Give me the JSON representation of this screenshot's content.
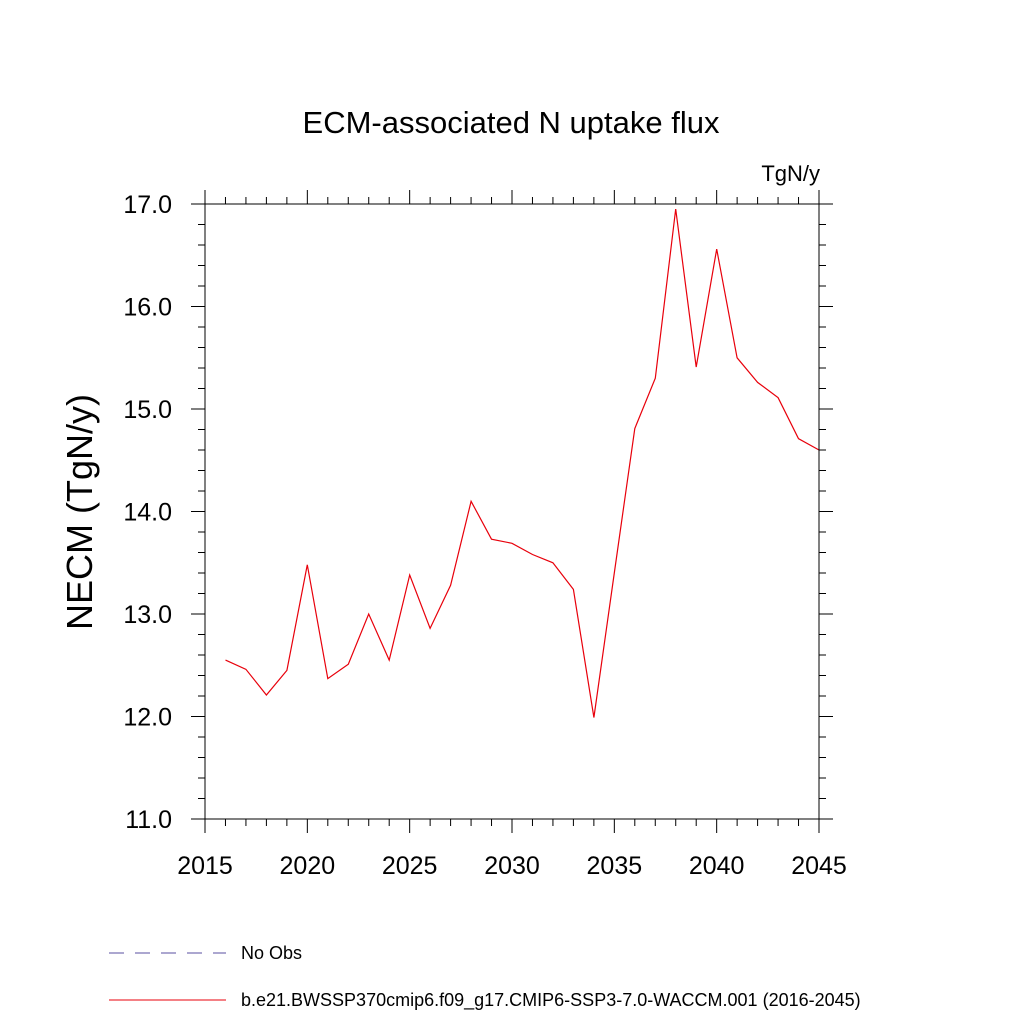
{
  "chart_data": {
    "type": "line",
    "title": "ECM-associated N uptake flux",
    "units": "TgN/y",
    "ylabel": "NECM  (TgN/y)",
    "xlabel": "",
    "xlim": [
      2015,
      2045
    ],
    "ylim": [
      11.0,
      17.0
    ],
    "x_ticks": [
      "2015",
      "2020",
      "2025",
      "2030",
      "2035",
      "2040",
      "2045"
    ],
    "y_ticks": [
      "11.0",
      "12.0",
      "13.0",
      "14.0",
      "15.0",
      "16.0",
      "17.0"
    ],
    "grid": false,
    "legend_position": "bottom",
    "series": [
      {
        "name": "b.e21.BWSSP370cmip6.f09_g17.CMIP6-SSP3-7.0-WACCM.001 (2016-2045)",
        "color": "#e8000b",
        "style": "solid",
        "x": [
          2016,
          2017,
          2018,
          2019,
          2020,
          2021,
          2022,
          2023,
          2024,
          2025,
          2026,
          2027,
          2028,
          2029,
          2030,
          2031,
          2032,
          2033,
          2034,
          2035,
          2036,
          2037,
          2038,
          2039,
          2040,
          2041,
          2042,
          2043,
          2044,
          2045
        ],
        "values": [
          12.55,
          12.46,
          12.21,
          12.45,
          13.48,
          12.37,
          12.51,
          13.0,
          12.55,
          13.38,
          12.86,
          13.28,
          14.1,
          13.73,
          13.69,
          13.58,
          13.5,
          13.24,
          11.99,
          13.4,
          14.81,
          15.3,
          16.95,
          15.41,
          16.56,
          15.5,
          15.26,
          15.11,
          14.71,
          14.6
        ]
      }
    ],
    "legend": [
      {
        "label": "No Obs",
        "color": "#5a4fa0",
        "style": "dashed"
      },
      {
        "label": "b.e21.BWSSP370cmip6.f09_g17.CMIP6-SSP3-7.0-WACCM.001 (2016-2045)",
        "color": "#e8000b",
        "style": "solid"
      }
    ]
  }
}
